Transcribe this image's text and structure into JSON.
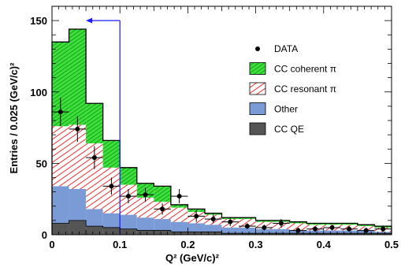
{
  "chart_data": {
    "type": "bar",
    "stacked": true,
    "xlabel": "Q² (GeV/c)²",
    "ylabel": "Entries / 0.025 (GeV/c)²",
    "xlim": [
      0,
      0.5
    ],
    "ylim": [
      0,
      160
    ],
    "x_ticks": [
      "0",
      "0.1",
      "0.2",
      "0.3",
      "0.4",
      "0.5"
    ],
    "y_ticks": [
      "0",
      "50",
      "100",
      "150"
    ],
    "bin_edges": [
      0,
      0.025,
      0.05,
      0.075,
      0.1,
      0.125,
      0.15,
      0.175,
      0.2,
      0.225,
      0.25,
      0.275,
      0.3,
      0.325,
      0.35,
      0.375,
      0.4,
      0.425,
      0.45,
      0.475,
      0.5
    ],
    "series": [
      {
        "name": "CC QE",
        "color": "#555555",
        "pattern": "solid",
        "values": [
          8,
          10,
          6,
          5,
          4,
          3,
          3,
          2,
          2,
          2,
          1,
          1,
          1,
          1,
          1,
          1,
          1,
          1,
          1,
          1
        ]
      },
      {
        "name": "Other",
        "color": "#7b9bd6",
        "pattern": "solid",
        "values": [
          26,
          22,
          12,
          10,
          10,
          9,
          8,
          7,
          6,
          5,
          4,
          4,
          3,
          3,
          2,
          2,
          2,
          2,
          2,
          1
        ]
      },
      {
        "name": "CC resonant π",
        "color": "#e8302e",
        "pattern": "hatch",
        "values": [
          42,
          45,
          46,
          32,
          21,
          14,
          12,
          10,
          8,
          7,
          6,
          6,
          5,
          5,
          5,
          4,
          4,
          4,
          3,
          3
        ]
      },
      {
        "name": "CC coherent π",
        "color": "#22cc22",
        "pattern": "hatch-green",
        "values": [
          59,
          67,
          28,
          19,
          12,
          10,
          11,
          2,
          2,
          1,
          1,
          1,
          1,
          1,
          1,
          1,
          1,
          1,
          1,
          1
        ]
      }
    ],
    "data_points": {
      "name": "DATA",
      "x": [
        0.0125,
        0.0375,
        0.0625,
        0.0875,
        0.1125,
        0.1375,
        0.1625,
        0.1875,
        0.2125,
        0.2375,
        0.2625,
        0.2875,
        0.3125,
        0.3375,
        0.3625,
        0.3875,
        0.4125,
        0.4375,
        0.4625,
        0.4875
      ],
      "y": [
        86,
        74,
        54,
        34,
        27,
        28,
        18,
        27,
        13,
        11,
        9,
        6,
        5,
        8,
        3,
        4,
        5,
        4,
        3,
        4
      ],
      "err": [
        10,
        9,
        8,
        6,
        5,
        5,
        4,
        5,
        4,
        3,
        3,
        2,
        2,
        3,
        2,
        2,
        2,
        2,
        2,
        2
      ]
    },
    "cut": {
      "x": 0.1,
      "y_top": 150,
      "arrow_to_x": 0.05
    },
    "legend": {
      "position": "right",
      "entries": [
        "DATA",
        "CC coherent π",
        "CC resonant π",
        "Other",
        "CC QE"
      ]
    }
  }
}
